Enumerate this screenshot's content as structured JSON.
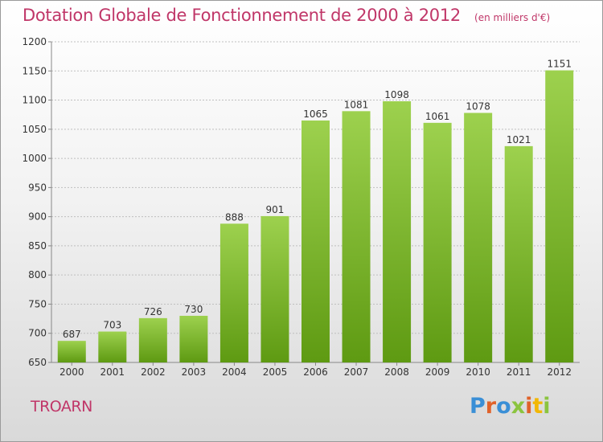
{
  "header": {
    "title": "Dotation Globale de Fonctionnement de 2000 à 2012",
    "unit": "(en milliers d'€)"
  },
  "footer": {
    "commune": "TROARN",
    "logo_text": "Proxiti"
  },
  "colors": {
    "title": "#c03668",
    "bar_light": "#9dd14e",
    "bar_dark": "#5e9a12",
    "grid": "#bfbfbf",
    "axis_text": "#333333"
  },
  "chart_data": {
    "type": "bar",
    "categories": [
      "2000",
      "2001",
      "2002",
      "2003",
      "2004",
      "2005",
      "2006",
      "2007",
      "2008",
      "2009",
      "2010",
      "2011",
      "2012"
    ],
    "values": [
      687,
      703,
      726,
      730,
      888,
      901,
      1065,
      1081,
      1098,
      1061,
      1078,
      1021,
      1151
    ],
    "ylim": [
      650,
      1200
    ],
    "yticks": [
      650,
      700,
      750,
      800,
      850,
      900,
      950,
      1000,
      1050,
      1100,
      1150,
      1200
    ],
    "grid": true,
    "data_labels": true
  }
}
